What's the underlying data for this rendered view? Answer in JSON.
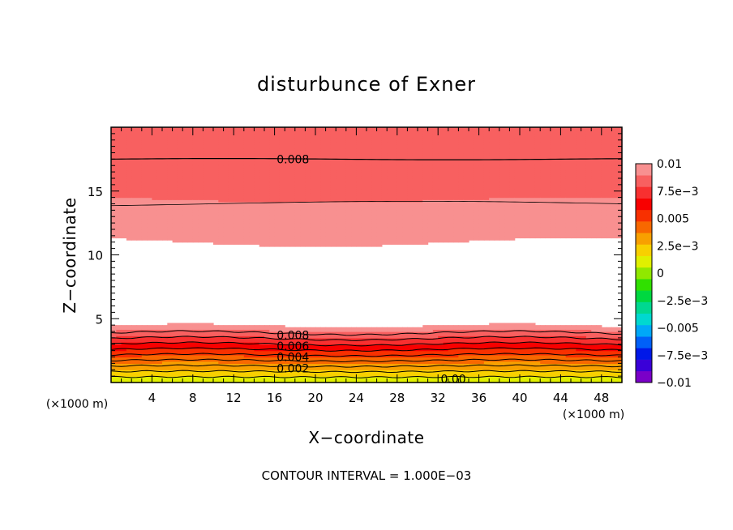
{
  "chart_data": {
    "type": "heatmap",
    "title": "disturbunce of Exner",
    "xlabel": "X−coordinate",
    "ylabel": "Z−coordinate",
    "x_unit": "(×1000 m)",
    "z_unit": "(×1000 m)",
    "xlim": [
      0,
      50
    ],
    "ylim": [
      0,
      20
    ],
    "x_ticks": [
      4,
      8,
      12,
      16,
      20,
      24,
      28,
      32,
      36,
      40,
      44,
      48
    ],
    "y_ticks": [
      5,
      10,
      15
    ],
    "colorbar": {
      "min": -0.01,
      "max": 0.01,
      "tick_labels": [
        "0.01",
        "7.5e−3",
        "0.005",
        "2.5e−3",
        "0",
        "−2.5e−3",
        "−0.005",
        "−7.5e−3",
        "−0.01"
      ],
      "colors": [
        "#7a00c8",
        "#3a00d8",
        "#0018e8",
        "#0060f8",
        "#00a8f8",
        "#00d8d0",
        "#00d890",
        "#00d840",
        "#30e000",
        "#90e800",
        "#e0f000",
        "#f8d000",
        "#f8a000",
        "#f86800",
        "#f83000",
        "#f80000",
        "#f83030",
        "#f86060",
        "#f89090"
      ]
    },
    "contour_interval": 0.001,
    "contour_labels": [
      "0.008",
      "0.008",
      "0.006",
      "0.004",
      "0.002",
      "0.00"
    ],
    "footnote": "CONTOUR INTERVAL = 1.000E−03"
  }
}
